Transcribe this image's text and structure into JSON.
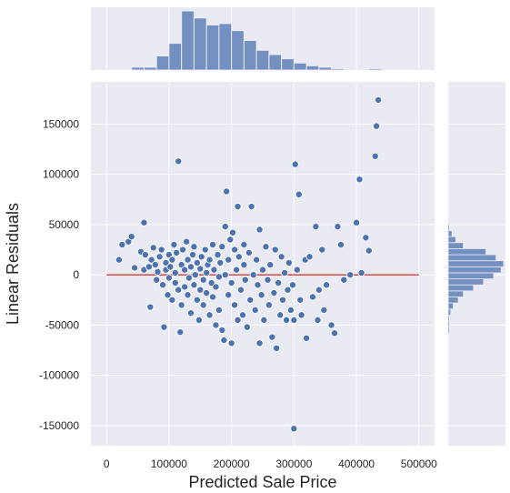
{
  "chart_data": {
    "type": "scatter",
    "title": "",
    "xlabel": "Predicted Sale Price",
    "ylabel": "Linear Residuals",
    "xlim": [
      -25000,
      525000
    ],
    "ylim": [
      -170000,
      192000
    ],
    "xticks": [
      0,
      100000,
      200000,
      300000,
      400000,
      500000
    ],
    "yticks": [
      -150000,
      -100000,
      -50000,
      0,
      50000,
      100000,
      150000
    ],
    "xtick_labels": [
      "0",
      "100000",
      "200000",
      "300000",
      "400000",
      "500000"
    ],
    "ytick_labels": [
      "-150000",
      "-100000",
      "-50000",
      "0",
      "50000",
      "100000",
      "150000"
    ],
    "grid": true,
    "reference_line": {
      "y": 0,
      "x_from": 0,
      "x_to": 500000,
      "color": "#d62728"
    },
    "colors": {
      "background": "#eaeaf2",
      "grid": "#ffffff",
      "points": "#4c72b0",
      "bars": "#4c72b0"
    },
    "series": [
      {
        "points": [
          [
            20000,
            15000
          ],
          [
            25000,
            30000
          ],
          [
            35000,
            33000
          ],
          [
            40000,
            38000
          ],
          [
            45000,
            7000
          ],
          [
            55000,
            23000
          ],
          [
            60000,
            52000
          ],
          [
            60000,
            5000
          ],
          [
            62000,
            20000
          ],
          [
            68000,
            8000
          ],
          [
            70000,
            -32000
          ],
          [
            72000,
            15000
          ],
          [
            75000,
            27000
          ],
          [
            78000,
            10000
          ],
          [
            80000,
            -5000
          ],
          [
            82000,
            3000
          ],
          [
            85000,
            18000
          ],
          [
            88000,
            25000
          ],
          [
            90000,
            -10000
          ],
          [
            92000,
            -52000
          ],
          [
            95000,
            12000
          ],
          [
            95000,
            5000
          ],
          [
            98000,
            -20000
          ],
          [
            100000,
            20000
          ],
          [
            100000,
            -3000
          ],
          [
            102000,
            8000
          ],
          [
            105000,
            -25000
          ],
          [
            105000,
            15000
          ],
          [
            108000,
            30000
          ],
          [
            110000,
            -8000
          ],
          [
            110000,
            2000
          ],
          [
            112000,
            22000
          ],
          [
            115000,
            113000
          ],
          [
            115000,
            -15000
          ],
          [
            118000,
            -57000
          ],
          [
            120000,
            10000
          ],
          [
            120000,
            -30000
          ],
          [
            122000,
            25000
          ],
          [
            125000,
            5000
          ],
          [
            125000,
            -12000
          ],
          [
            128000,
            33000
          ],
          [
            130000,
            -20000
          ],
          [
            130000,
            15000
          ],
          [
            132000,
            -3000
          ],
          [
            135000,
            8000
          ],
          [
            135000,
            -38000
          ],
          [
            138000,
            20000
          ],
          [
            140000,
            -10000
          ],
          [
            140000,
            28000
          ],
          [
            142000,
            0
          ],
          [
            145000,
            -25000
          ],
          [
            145000,
            12000
          ],
          [
            148000,
            -45000
          ],
          [
            150000,
            6000
          ],
          [
            150000,
            -15000
          ],
          [
            152000,
            18000
          ],
          [
            155000,
            -5000
          ],
          [
            155000,
            -30000
          ],
          [
            158000,
            25000
          ],
          [
            160000,
            2000
          ],
          [
            160000,
            -18000
          ],
          [
            162000,
            10000
          ],
          [
            165000,
            -40000
          ],
          [
            165000,
            15000
          ],
          [
            168000,
            -8000
          ],
          [
            170000,
            30000
          ],
          [
            170000,
            -22000
          ],
          [
            172000,
            5000
          ],
          [
            175000,
            -12000
          ],
          [
            175000,
            -50000
          ],
          [
            178000,
            20000
          ],
          [
            180000,
            -2000
          ],
          [
            180000,
            -35000
          ],
          [
            182000,
            12000
          ],
          [
            185000,
            -55000
          ],
          [
            185000,
            28000
          ],
          [
            188000,
            -65000
          ],
          [
            190000,
            48000
          ],
          [
            190000,
            0
          ],
          [
            192000,
            83000
          ],
          [
            195000,
            -20000
          ],
          [
            195000,
            15000
          ],
          [
            198000,
            35000
          ],
          [
            200000,
            -68000
          ],
          [
            200000,
            -8000
          ],
          [
            202000,
            42000
          ],
          [
            205000,
            25000
          ],
          [
            205000,
            -30000
          ],
          [
            208000,
            5000
          ],
          [
            210000,
            68000
          ],
          [
            210000,
            -45000
          ],
          [
            212000,
            18000
          ],
          [
            215000,
            -15000
          ],
          [
            218000,
            -40000
          ],
          [
            220000,
            10000
          ],
          [
            220000,
            30000
          ],
          [
            222000,
            -5000
          ],
          [
            225000,
            -52000
          ],
          [
            228000,
            22000
          ],
          [
            230000,
            -25000
          ],
          [
            232000,
            68000
          ],
          [
            235000,
            0
          ],
          [
            238000,
            -35000
          ],
          [
            240000,
            15000
          ],
          [
            242000,
            -10000
          ],
          [
            245000,
            -68000
          ],
          [
            245000,
            45000
          ],
          [
            248000,
            -20000
          ],
          [
            250000,
            5000
          ],
          [
            252000,
            -45000
          ],
          [
            255000,
            28000
          ],
          [
            258000,
            -5000
          ],
          [
            260000,
            -30000
          ],
          [
            262000,
            10000
          ],
          [
            265000,
            -62000
          ],
          [
            268000,
            -18000
          ],
          [
            270000,
            25000
          ],
          [
            272000,
            -73000
          ],
          [
            275000,
            -8000
          ],
          [
            278000,
            -40000
          ],
          [
            280000,
            18000
          ],
          [
            282000,
            -25000
          ],
          [
            285000,
            2000
          ],
          [
            288000,
            -45000
          ],
          [
            290000,
            -15000
          ],
          [
            292000,
            12000
          ],
          [
            295000,
            -35000
          ],
          [
            298000,
            -10000
          ],
          [
            300000,
            -153000
          ],
          [
            300000,
            -45000
          ],
          [
            302000,
            110000
          ],
          [
            305000,
            5000
          ],
          [
            308000,
            80000
          ],
          [
            310000,
            -25000
          ],
          [
            312000,
            -40000
          ],
          [
            318000,
            15000
          ],
          [
            320000,
            -63000
          ],
          [
            325000,
            18000
          ],
          [
            330000,
            -22000
          ],
          [
            335000,
            48000
          ],
          [
            338000,
            -45000
          ],
          [
            340000,
            -15000
          ],
          [
            345000,
            25000
          ],
          [
            348000,
            -35000
          ],
          [
            352000,
            -10000
          ],
          [
            360000,
            -50000
          ],
          [
            365000,
            -58000
          ],
          [
            370000,
            48000
          ],
          [
            375000,
            30000
          ],
          [
            380000,
            -5000
          ],
          [
            390000,
            0
          ],
          [
            400000,
            52000
          ],
          [
            405000,
            95000
          ],
          [
            408000,
            2000
          ],
          [
            415000,
            37000
          ],
          [
            420000,
            24000
          ],
          [
            430000,
            118000
          ],
          [
            432000,
            148000
          ],
          [
            435000,
            174000
          ]
        ]
      }
    ],
    "top_histogram": {
      "bin_edges": [
        20000,
        40000,
        60000,
        80000,
        100000,
        120000,
        140000,
        160000,
        180000,
        200000,
        220000,
        240000,
        260000,
        280000,
        300000,
        320000,
        340000,
        360000,
        380000,
        400000,
        420000,
        440000
      ],
      "counts": [
        0,
        2,
        2,
        10,
        19,
        42,
        37,
        32,
        33,
        28,
        21,
        14,
        11,
        8,
        5,
        3,
        2,
        1,
        0,
        0,
        1
      ]
    },
    "right_histogram": {
      "bin_edges": [
        -58000,
        -52000,
        -46000,
        -40000,
        -34000,
        -28000,
        -22000,
        -16000,
        -10000,
        -4000,
        2000,
        8000,
        14000,
        20000,
        26000,
        32000,
        38000,
        44000,
        50000
      ],
      "counts": [
        1,
        1,
        1,
        2,
        4,
        8,
        12,
        20,
        28,
        36,
        42,
        44,
        38,
        30,
        12,
        6,
        3,
        1
      ]
    }
  }
}
